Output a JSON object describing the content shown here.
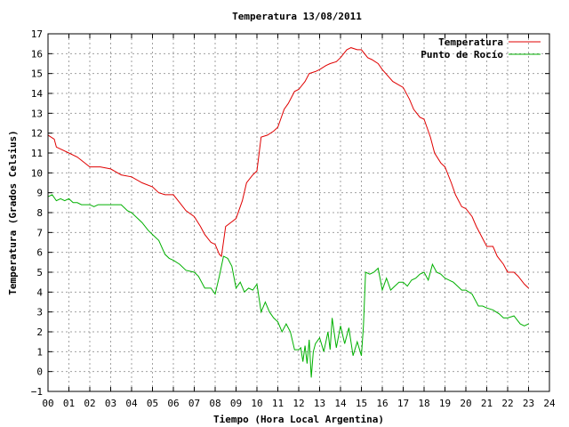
{
  "chart_data": {
    "type": "line",
    "title": "Temperatura 13/08/2011",
    "xlabel": "Tiempo (Hora Local Argentina)",
    "ylabel": "Temperatura (Grados Celsius)",
    "xlim": [
      0,
      24
    ],
    "ylim": [
      -1,
      17
    ],
    "grid": true,
    "legend_position": "top-right",
    "x_ticks": [
      "00",
      "01",
      "02",
      "03",
      "04",
      "05",
      "06",
      "07",
      "08",
      "09",
      "10",
      "11",
      "12",
      "13",
      "14",
      "15",
      "16",
      "17",
      "18",
      "19",
      "20",
      "21",
      "22",
      "23",
      "24"
    ],
    "y_ticks": [
      "−1",
      "0",
      "1",
      "2",
      "3",
      "4",
      "5",
      "6",
      "7",
      "8",
      "9",
      "10",
      "11",
      "12",
      "13",
      "14",
      "15",
      "16",
      "17"
    ],
    "series": [
      {
        "name": "Temperatura",
        "color": "#e00000",
        "x": [
          0,
          0.3,
          0.4,
          1.0,
          1.4,
          2.0,
          2.5,
          3.0,
          3.5,
          4.0,
          4.5,
          5.0,
          5.3,
          5.6,
          6.0,
          6.3,
          6.6,
          7.0,
          7.3,
          7.5,
          7.8,
          8.0,
          8.2,
          8.3,
          8.5,
          9.0,
          9.3,
          9.5,
          9.8,
          10.0,
          10.2,
          10.5,
          10.8,
          11.0,
          11.3,
          11.5,
          11.8,
          12.0,
          12.3,
          12.5,
          12.8,
          13.0,
          13.3,
          13.5,
          13.8,
          14.0,
          14.3,
          14.5,
          14.8,
          15.0,
          15.3,
          15.5,
          15.8,
          16.0,
          16.5,
          17.0,
          17.3,
          17.5,
          17.8,
          18.0,
          18.3,
          18.5,
          18.8,
          19.0,
          19.3,
          19.5,
          19.8,
          20.0,
          20.3,
          20.5,
          20.8,
          21.0,
          21.3,
          21.5,
          21.8,
          22.0,
          22.3,
          22.5,
          22.8,
          23.0
        ],
        "y": [
          11.9,
          11.7,
          11.3,
          11.0,
          10.8,
          10.3,
          10.3,
          10.2,
          9.9,
          9.8,
          9.5,
          9.3,
          9.0,
          8.9,
          8.9,
          8.5,
          8.1,
          7.8,
          7.3,
          6.9,
          6.5,
          6.4,
          5.9,
          5.8,
          7.3,
          7.7,
          8.6,
          9.5,
          9.9,
          10.1,
          11.8,
          11.9,
          12.1,
          12.3,
          13.2,
          13.5,
          14.1,
          14.2,
          14.6,
          15.0,
          15.1,
          15.2,
          15.4,
          15.5,
          15.6,
          15.8,
          16.2,
          16.3,
          16.2,
          16.2,
          15.8,
          15.7,
          15.5,
          15.2,
          14.6,
          14.3,
          13.7,
          13.2,
          12.8,
          12.7,
          11.8,
          11.0,
          10.5,
          10.3,
          9.5,
          8.9,
          8.3,
          8.2,
          7.8,
          7.3,
          6.7,
          6.3,
          6.3,
          5.8,
          5.4,
          5.0,
          5.0,
          4.8,
          4.4,
          4.2
        ]
      },
      {
        "name": "Punto de Rocío",
        "color": "#00b000",
        "x": [
          0,
          0.2,
          0.4,
          0.6,
          0.8,
          1.0,
          1.2,
          1.4,
          1.6,
          1.8,
          2.0,
          2.2,
          2.4,
          2.6,
          2.8,
          3.0,
          3.2,
          3.5,
          3.8,
          4.0,
          4.2,
          4.5,
          4.8,
          5.0,
          5.3,
          5.6,
          5.8,
          6.0,
          6.3,
          6.6,
          7.0,
          7.2,
          7.5,
          7.8,
          8.0,
          8.2,
          8.4,
          8.6,
          8.8,
          9.0,
          9.2,
          9.4,
          9.6,
          9.8,
          10.0,
          10.2,
          10.4,
          10.6,
          10.8,
          11.0,
          11.2,
          11.4,
          11.6,
          11.8,
          12.0,
          12.1,
          12.2,
          12.3,
          12.4,
          12.5,
          12.6,
          12.7,
          12.8,
          13.0,
          13.2,
          13.4,
          13.5,
          13.6,
          13.8,
          14.0,
          14.2,
          14.4,
          14.6,
          14.8,
          15.0,
          15.1,
          15.2,
          15.4,
          15.6,
          15.8,
          16.0,
          16.2,
          16.4,
          16.6,
          16.8,
          17.0,
          17.2,
          17.4,
          17.6,
          17.8,
          18.0,
          18.2,
          18.4,
          18.6,
          18.8,
          19.0,
          19.2,
          19.4,
          19.6,
          19.8,
          20.0,
          20.3,
          20.6,
          20.8,
          21.0,
          21.3,
          21.6,
          21.8,
          22.0,
          22.3,
          22.6,
          22.8,
          23.0
        ],
        "y": [
          8.8,
          8.9,
          8.6,
          8.7,
          8.6,
          8.7,
          8.5,
          8.5,
          8.4,
          8.4,
          8.4,
          8.3,
          8.4,
          8.4,
          8.4,
          8.4,
          8.4,
          8.4,
          8.1,
          8.0,
          7.8,
          7.5,
          7.1,
          6.9,
          6.6,
          5.9,
          5.7,
          5.6,
          5.4,
          5.1,
          5.0,
          4.8,
          4.2,
          4.2,
          3.9,
          4.8,
          5.8,
          5.7,
          5.3,
          4.2,
          4.5,
          4.0,
          4.2,
          4.1,
          4.4,
          3.0,
          3.5,
          3.0,
          2.7,
          2.5,
          2.0,
          2.4,
          2.0,
          1.1,
          1.1,
          1.2,
          0.5,
          1.3,
          0.4,
          1.6,
          -0.3,
          1.0,
          1.4,
          1.7,
          1.0,
          2.0,
          1.1,
          2.7,
          1.2,
          2.3,
          1.4,
          2.2,
          0.8,
          1.5,
          0.8,
          2.3,
          5.0,
          4.9,
          5.0,
          5.2,
          4.1,
          4.7,
          4.1,
          4.3,
          4.5,
          4.5,
          4.3,
          4.6,
          4.7,
          4.9,
          5.0,
          4.6,
          5.4,
          5.0,
          4.9,
          4.7,
          4.6,
          4.5,
          4.3,
          4.1,
          4.1,
          3.9,
          3.3,
          3.3,
          3.2,
          3.1,
          2.9,
          2.7,
          2.7,
          2.8,
          2.4,
          2.3,
          2.4
        ]
      }
    ]
  }
}
